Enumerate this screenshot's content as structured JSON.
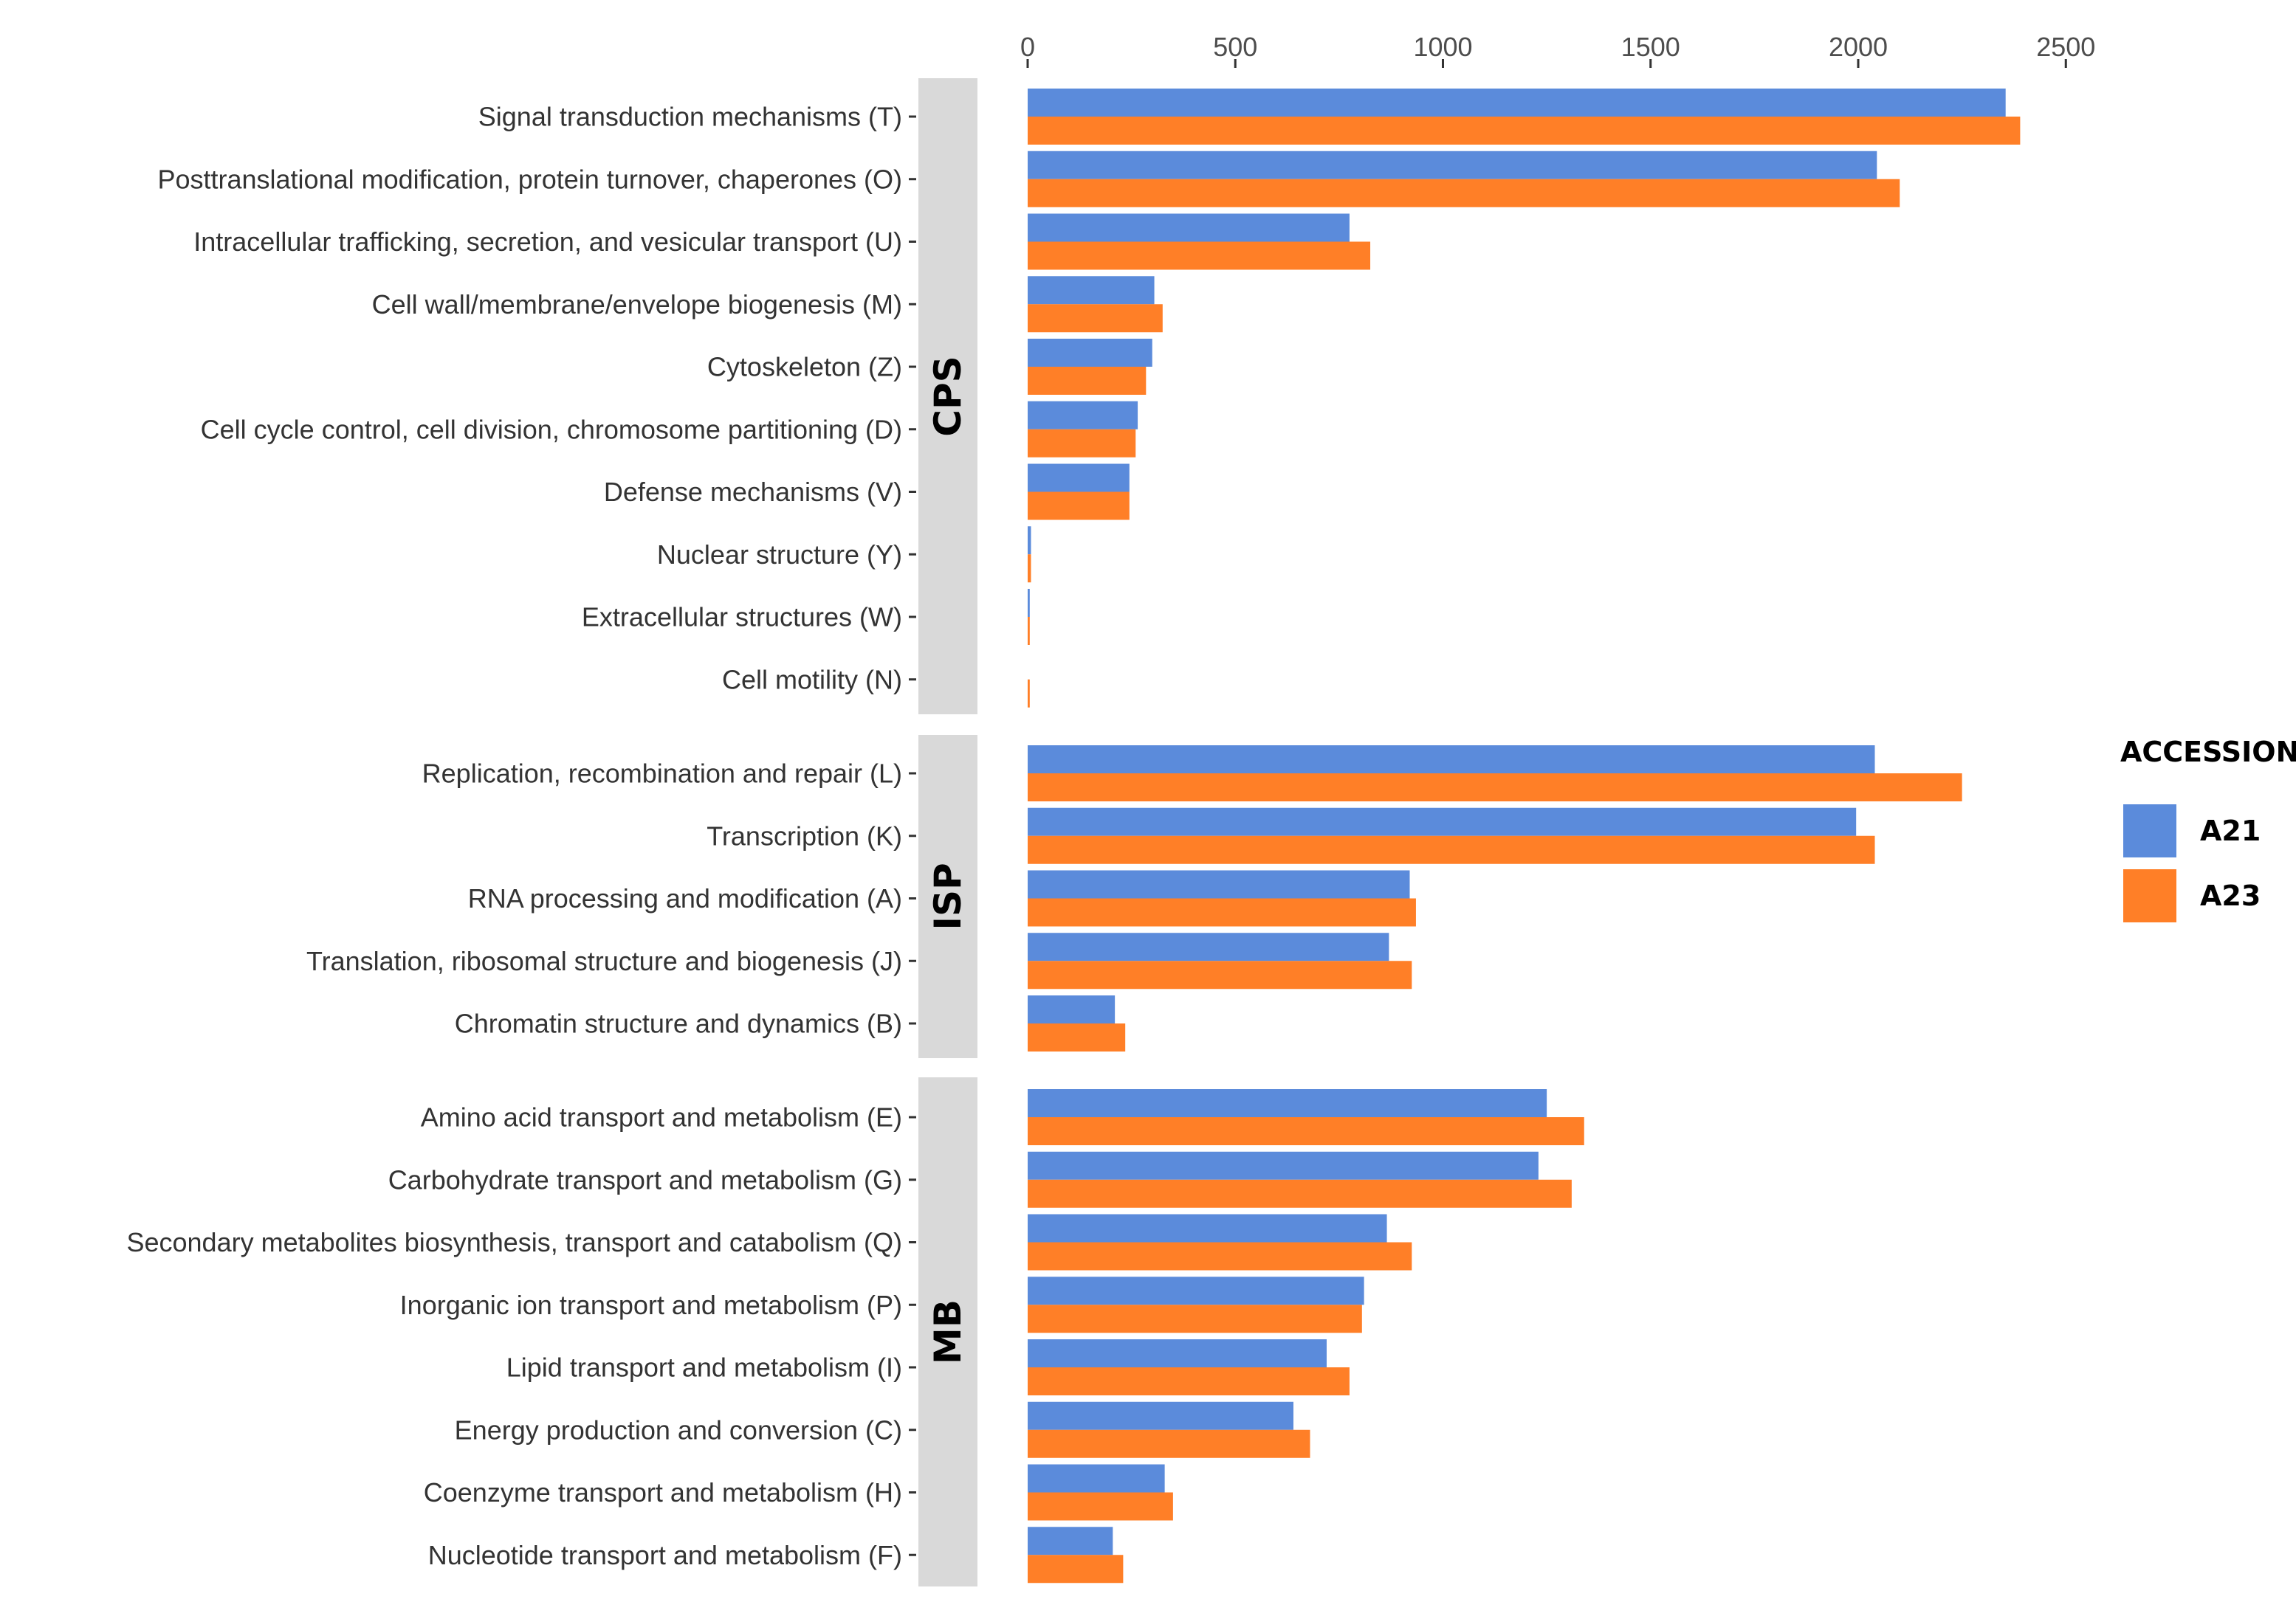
{
  "chart_data": {
    "type": "bar",
    "orientation": "horizontal",
    "facets": [
      {
        "name": "CPS",
        "categories": [
          "Signal transduction mechanisms (T)",
          "Posttranslational modification, protein turnover, chaperones (O)",
          "Intracellular trafficking, secretion, and vesicular transport (U)",
          "Cell wall/membrane/envelope biogenesis (M)",
          "Cytoskeleton (Z)",
          "Cell cycle control, cell division, chromosome partitioning (D)",
          "Defense mechanisms (V)",
          "Nuclear structure (Y)",
          "Extracellular structures (W)",
          "Cell motility (N)"
        ],
        "A21": [
          2355,
          2045,
          775,
          305,
          300,
          265,
          245,
          8,
          5,
          0
        ],
        "A23": [
          2390,
          2100,
          825,
          325,
          285,
          260,
          245,
          8,
          5,
          5
        ]
      },
      {
        "name": "ISP",
        "categories": [
          "Replication, recombination and repair (L)",
          "Transcription (K)",
          "RNA processing and modification (A)",
          "Translation, ribosomal structure and biogenesis (J)",
          "Chromatin structure and dynamics (B)"
        ],
        "A21": [
          2040,
          1995,
          920,
          870,
          210
        ],
        "A23": [
          2250,
          2040,
          935,
          925,
          235
        ]
      },
      {
        "name": "MB",
        "categories": [
          "Amino acid transport and metabolism (E)",
          "Carbohydrate transport and metabolism (G)",
          "Secondary metabolites biosynthesis, transport and catabolism (Q)",
          "Inorganic ion transport and metabolism (P)",
          "Lipid transport and metabolism (I)",
          "Energy production and conversion (C)",
          "Coenzyme transport and metabolism (H)",
          "Nucleotide transport and metabolism (F)"
        ],
        "A21": [
          1250,
          1230,
          865,
          810,
          720,
          640,
          330,
          205
        ],
        "A23": [
          1340,
          1310,
          925,
          805,
          775,
          680,
          350,
          230
        ]
      }
    ],
    "series": [
      {
        "name": "A21",
        "color": "#5b8bdb"
      },
      {
        "name": "A23",
        "color": "#ff7f27"
      }
    ],
    "x_ticks": [
      0,
      500,
      1000,
      1500,
      2000,
      2500
    ],
    "xlim": [
      0,
      2650
    ],
    "x_axis_position": "top",
    "legend": {
      "title": "ACCESSION",
      "position": "right"
    },
    "xlabel": "",
    "ylabel": "",
    "grid": false
  }
}
